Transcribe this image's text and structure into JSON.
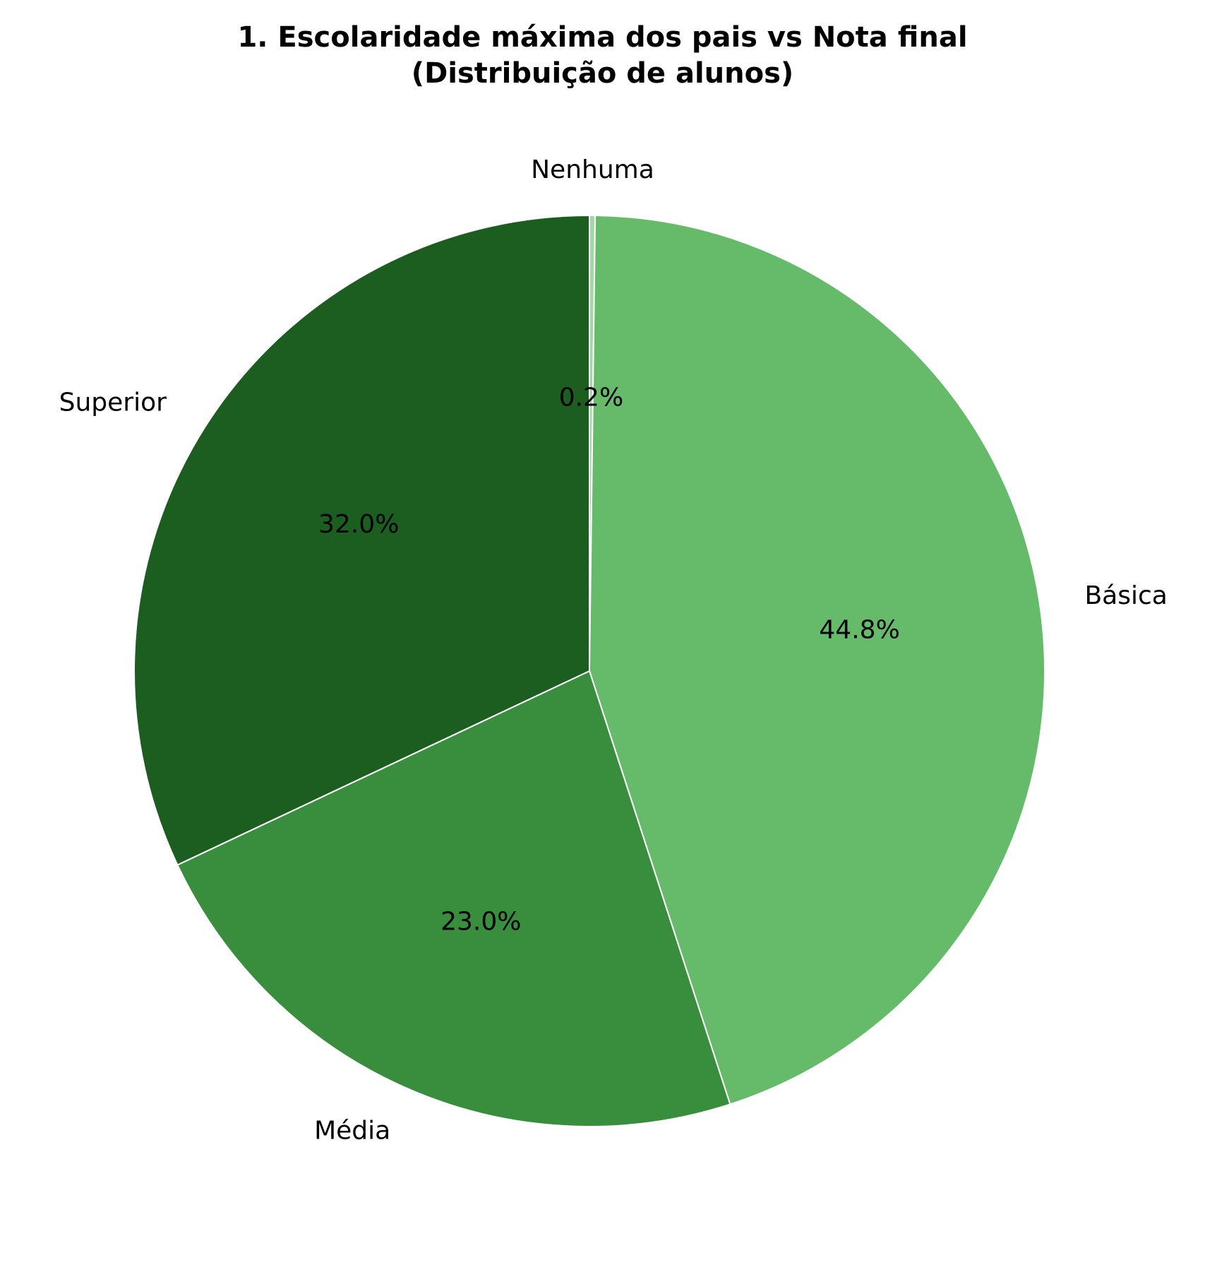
{
  "chart_data": {
    "type": "pie",
    "title_lines": [
      "1. Escolaridade máxima dos pais vs Nota final",
      "(Distribuição de alunos)"
    ],
    "slices": [
      {
        "label": "Nenhuma",
        "value": 0.2,
        "pct_label": "0.2%",
        "color": "#a5d6a7"
      },
      {
        "label": "Básica",
        "value": 44.8,
        "pct_label": "44.8%",
        "color": "#66bb6a"
      },
      {
        "label": "Média",
        "value": 23.0,
        "pct_label": "23.0%",
        "color": "#388e3c"
      },
      {
        "label": "Superior",
        "value": 32.0,
        "pct_label": "32.0%",
        "color": "#1b5e20"
      }
    ],
    "start_angle": "top",
    "direction": "clockwise",
    "legend": "none"
  }
}
